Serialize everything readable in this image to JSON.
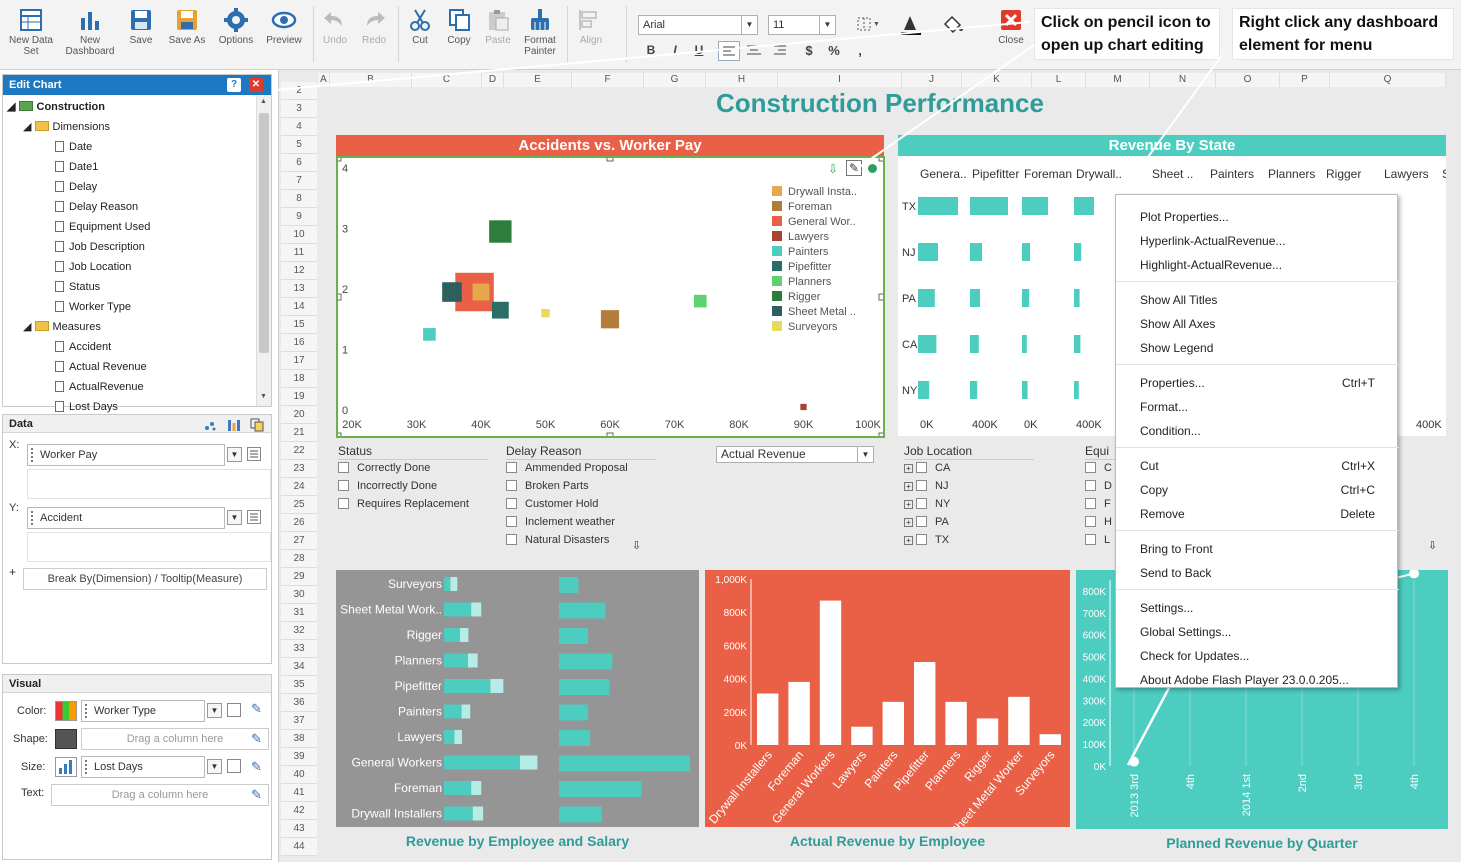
{
  "toolbar": {
    "buttons": [
      "New Data Set",
      "New Dashboard",
      "Save",
      "Save As",
      "Options",
      "Preview",
      "Undo",
      "Redo",
      "Cut",
      "Copy",
      "Paste",
      "Format Painter",
      "Align",
      "Close"
    ],
    "font_name": "Arial",
    "font_size": "11",
    "fmt": [
      "B",
      "I",
      "U",
      "$",
      "%",
      ","
    ],
    "close_label": "Close"
  },
  "notes": {
    "pencil": "Click on pencil icon to open up chart editing",
    "rightclick": "Right click any dashboard element for menu"
  },
  "edit_chart": {
    "title": "Edit Chart",
    "root": "Construction",
    "dimensions_label": "Dimensions",
    "dimensions": [
      "Date",
      "Date1",
      "Delay",
      "Delay Reason",
      "Equipment Used",
      "Job Description",
      "Job Location",
      "Status",
      "Worker Type"
    ],
    "measures_label": "Measures",
    "measures": [
      "Accident",
      "Actual Revenue",
      "ActualRevenue",
      "Lost Days"
    ]
  },
  "data_panel": {
    "title": "Data",
    "x_label": "X:",
    "x_value": "Worker Pay",
    "y_label": "Y:",
    "y_value": "Accident",
    "plus": "+",
    "break_by": "Break By(Dimension) / Tooltip(Measure)"
  },
  "visual_panel": {
    "title": "Visual",
    "color_label": "Color:",
    "color_value": "Worker Type",
    "shape_label": "Shape:",
    "shape_placeholder": "Drag a column here",
    "size_label": "Size:",
    "size_value": "Lost Days",
    "text_label": "Text:",
    "text_placeholder": "Drag a column here"
  },
  "sheet": {
    "columns": [
      "A",
      "B",
      "C",
      "D",
      "E",
      "F",
      "G",
      "H",
      "I",
      "J",
      "K",
      "L",
      "M",
      "N",
      "O",
      "P",
      "Q"
    ],
    "rows": [
      "2",
      "3",
      "4",
      "5",
      "6",
      "7",
      "8",
      "9",
      "10",
      "11",
      "12",
      "13",
      "14",
      "15",
      "16",
      "17",
      "18",
      "19",
      "20",
      "21",
      "22",
      "23",
      "24",
      "25",
      "26",
      "27",
      "28",
      "29",
      "30",
      "31",
      "32",
      "33",
      "34",
      "35",
      "36",
      "37",
      "38",
      "39",
      "40",
      "41",
      "42",
      "43",
      "44"
    ]
  },
  "dashboard": {
    "title": "Construction Performance",
    "accidents_title": "Accidents vs. Worker Pay",
    "revenue_state_title": "Revenue By State",
    "actual_revenue_select": "Actual Revenue",
    "bar_title": "Revenue by Employee and Salary",
    "column_title": "Actual Revenue by Employee",
    "line_title": "Planned Revenue by Quarter"
  },
  "filters": {
    "status": {
      "title": "Status",
      "items": [
        "Correctly Done",
        "Incorrectly Done",
        "Requires Replacement"
      ]
    },
    "delay_reason": {
      "title": "Delay Reason",
      "items": [
        "Ammended Proposal",
        "Broken Parts",
        "Customer Hold",
        "Inclement weather",
        "Natural Disasters"
      ]
    },
    "job_location": {
      "title": "Job Location",
      "items": [
        "CA",
        "NJ",
        "NY",
        "PA",
        "TX"
      ]
    },
    "equipment": {
      "title": "Equi",
      "items": [
        "C",
        "D",
        "F",
        "H",
        "L"
      ]
    }
  },
  "context_menu": {
    "groups": [
      [
        {
          "label": "Plot Properties..."
        },
        {
          "label": "Hyperlink-ActualRevenue..."
        },
        {
          "label": "Highlight-ActualRevenue..."
        }
      ],
      [
        {
          "label": "Show All Titles"
        },
        {
          "label": "Show All Axes"
        },
        {
          "label": "Show Legend"
        }
      ],
      [
        {
          "label": "Properties...",
          "shortcut": "Ctrl+T"
        },
        {
          "label": "Format..."
        },
        {
          "label": "Condition..."
        }
      ],
      [
        {
          "label": "Cut",
          "shortcut": "Ctrl+X"
        },
        {
          "label": "Copy",
          "shortcut": "Ctrl+C"
        },
        {
          "label": "Remove",
          "shortcut": "Delete"
        }
      ],
      [
        {
          "label": "Bring to Front"
        },
        {
          "label": "Send to Back"
        }
      ],
      [
        {
          "label": "Settings..."
        },
        {
          "label": "Global Settings..."
        },
        {
          "label": "Check for Updates..."
        },
        {
          "label": "About Adobe Flash Player 23.0.0.205..."
        }
      ]
    ]
  },
  "colors": {
    "accent": "#ea6046",
    "teal": "#4dccc0",
    "gray": "#959595",
    "header_blue": "#1c78c0",
    "title_teal": "#2e9c98"
  },
  "chart_data": [
    {
      "type": "scatter",
      "title": "Accidents vs. Worker Pay",
      "xlabel": "Worker Pay",
      "ylabel": "Accident",
      "xlim": [
        20000,
        100000
      ],
      "ylim": [
        0,
        4
      ],
      "x_ticks": [
        "20K",
        "30K",
        "40K",
        "50K",
        "60K",
        "70K",
        "80K",
        "90K",
        "100K"
      ],
      "y_ticks": [
        "0",
        "1",
        "2",
        "3",
        "4"
      ],
      "legend": [
        "Drywall Insta..",
        "Foreman",
        "General Wor..",
        "Lawyers",
        "Painters",
        "Pipefitter",
        "Planners",
        "Rigger",
        "Sheet Metal ..",
        "Surveyors"
      ],
      "legend_colors": [
        "#e6a84a",
        "#b27d3a",
        "#ea6046",
        "#a84333",
        "#4dccc0",
        "#2a6e68",
        "#5fd170",
        "#2e7d3e",
        "#2d5f5e",
        "#e6dc5a"
      ],
      "points": [
        {
          "series": "Rigger",
          "x": 43000,
          "y": 2.95,
          "size": 3.2
        },
        {
          "series": "General Wor..",
          "x": 39000,
          "y": 1.95,
          "size": 5.5
        },
        {
          "series": "Sheet Metal ..",
          "x": 35500,
          "y": 1.95,
          "size": 2.8
        },
        {
          "series": "Drywall Insta..",
          "x": 40000,
          "y": 1.95,
          "size": 2.4
        },
        {
          "series": "Pipefitter",
          "x": 43000,
          "y": 1.65,
          "size": 2.4
        },
        {
          "series": "Surveyors",
          "x": 50000,
          "y": 1.6,
          "size": 1.2
        },
        {
          "series": "Foreman",
          "x": 60000,
          "y": 1.5,
          "size": 2.6
        },
        {
          "series": "Planners",
          "x": 74000,
          "y": 1.8,
          "size": 1.8
        },
        {
          "series": "Painters",
          "x": 32000,
          "y": 1.25,
          "size": 1.8
        },
        {
          "series": "Lawyers",
          "x": 90000,
          "y": 0.05,
          "size": 0.9
        }
      ]
    },
    {
      "type": "bar",
      "title": "Revenue By State",
      "categories": [
        "TX",
        "NJ",
        "PA",
        "CA",
        "NY"
      ],
      "columns": [
        "Genera..",
        "Pipefitter",
        "Foreman",
        "Drywall..",
        "Sheet ..",
        "Painters",
        "Planners",
        "Rigger",
        "Lawyers",
        "Survey.."
      ],
      "x_ticks": [
        "0K",
        "400K",
        "0K",
        "400K",
        "0K",
        "400K",
        "0K",
        "400K",
        "400K"
      ],
      "series": [
        {
          "name": "Genera..",
          "values": [
            1.0,
            0.5,
            0.42,
            0.46,
            0.28
          ]
        },
        {
          "name": "Pipefitter",
          "values": [
            0.95,
            0.3,
            0.25,
            0.22,
            0.18
          ]
        },
        {
          "name": "Foreman",
          "values": [
            0.65,
            0.2,
            0.18,
            0.12,
            0.14
          ]
        },
        {
          "name": "Drywall..",
          "values": [
            0.5,
            0.18,
            0.14,
            0.16,
            0.12
          ]
        }
      ]
    },
    {
      "type": "bar",
      "title": "Revenue by Employee and Salary",
      "categories": [
        "Surveyors",
        "Sheet Metal Work..",
        "Rigger",
        "Planners",
        "Pipefitter",
        "Painters",
        "Lawyers",
        "General Workers",
        "Foreman",
        "Drywall Installers"
      ],
      "series": [
        {
          "name": "Revenue",
          "values": [
            8,
            34,
            20,
            30,
            58,
            22,
            13,
            95,
            34,
            36
          ]
        },
        {
          "name": "Salary",
          "values": [
            20,
            48,
            30,
            55,
            52,
            30,
            32,
            135,
            85,
            44
          ]
        }
      ]
    },
    {
      "type": "bar",
      "title": "Actual Revenue by Employee",
      "categories": [
        "Drywall Installers",
        "Foreman",
        "General Workers",
        "Lawyers",
        "Painters",
        "Pipefitter",
        "Planners",
        "Rigger",
        "Sheet Metal Worker",
        "Surveyors"
      ],
      "values": [
        310000,
        380000,
        870000,
        110000,
        260000,
        500000,
        260000,
        160000,
        290000,
        65000
      ],
      "ylim": [
        0,
        1000000
      ],
      "y_ticks": [
        "0K",
        "200K",
        "400K",
        "600K",
        "800K",
        "1,000K"
      ]
    },
    {
      "type": "line",
      "title": "Planned Revenue by Quarter",
      "categories": [
        "2013 3rd",
        "4th",
        "2014 1st",
        "2nd",
        "3rd",
        "4th"
      ],
      "values": [
        20000,
        null,
        null,
        null,
        null,
        880000
      ],
      "ylim": [
        0,
        850000
      ],
      "y_ticks": [
        "0K",
        "100K",
        "200K",
        "300K",
        "400K",
        "500K",
        "600K",
        "700K",
        "800K"
      ]
    }
  ]
}
